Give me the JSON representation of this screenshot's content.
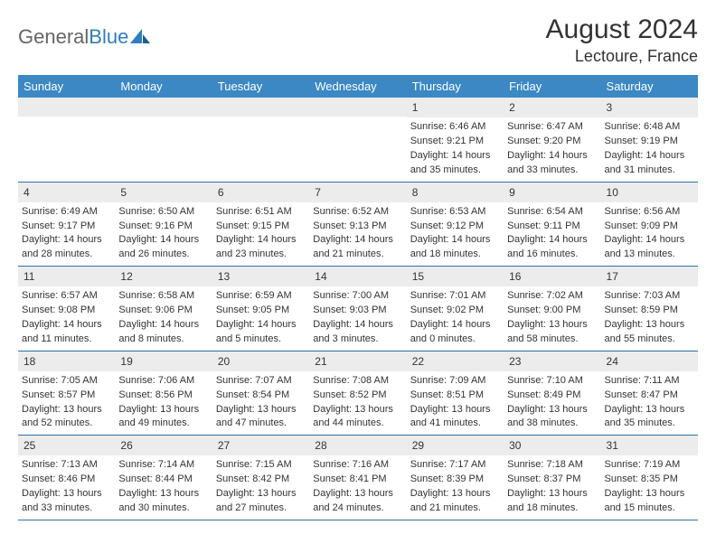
{
  "brand": {
    "part1": "General",
    "part2": "Blue"
  },
  "title": "August 2024",
  "location": "Lectoure, France",
  "colors": {
    "header_bg": "#3b88c4",
    "header_text": "#ffffff",
    "daynum_bg": "#ececec",
    "week_border": "#2f6fa6",
    "body_text": "#333333",
    "brand_gray": "#666666",
    "brand_blue": "#2f7fbf"
  },
  "weekdays": [
    "Sunday",
    "Monday",
    "Tuesday",
    "Wednesday",
    "Thursday",
    "Friday",
    "Saturday"
  ],
  "weeks": [
    [
      {
        "day": "",
        "lines": []
      },
      {
        "day": "",
        "lines": []
      },
      {
        "day": "",
        "lines": []
      },
      {
        "day": "",
        "lines": []
      },
      {
        "day": "1",
        "lines": [
          "Sunrise: 6:46 AM",
          "Sunset: 9:21 PM",
          "Daylight: 14 hours",
          "and 35 minutes."
        ]
      },
      {
        "day": "2",
        "lines": [
          "Sunrise: 6:47 AM",
          "Sunset: 9:20 PM",
          "Daylight: 14 hours",
          "and 33 minutes."
        ]
      },
      {
        "day": "3",
        "lines": [
          "Sunrise: 6:48 AM",
          "Sunset: 9:19 PM",
          "Daylight: 14 hours",
          "and 31 minutes."
        ]
      }
    ],
    [
      {
        "day": "4",
        "lines": [
          "Sunrise: 6:49 AM",
          "Sunset: 9:17 PM",
          "Daylight: 14 hours",
          "and 28 minutes."
        ]
      },
      {
        "day": "5",
        "lines": [
          "Sunrise: 6:50 AM",
          "Sunset: 9:16 PM",
          "Daylight: 14 hours",
          "and 26 minutes."
        ]
      },
      {
        "day": "6",
        "lines": [
          "Sunrise: 6:51 AM",
          "Sunset: 9:15 PM",
          "Daylight: 14 hours",
          "and 23 minutes."
        ]
      },
      {
        "day": "7",
        "lines": [
          "Sunrise: 6:52 AM",
          "Sunset: 9:13 PM",
          "Daylight: 14 hours",
          "and 21 minutes."
        ]
      },
      {
        "day": "8",
        "lines": [
          "Sunrise: 6:53 AM",
          "Sunset: 9:12 PM",
          "Daylight: 14 hours",
          "and 18 minutes."
        ]
      },
      {
        "day": "9",
        "lines": [
          "Sunrise: 6:54 AM",
          "Sunset: 9:11 PM",
          "Daylight: 14 hours",
          "and 16 minutes."
        ]
      },
      {
        "day": "10",
        "lines": [
          "Sunrise: 6:56 AM",
          "Sunset: 9:09 PM",
          "Daylight: 14 hours",
          "and 13 minutes."
        ]
      }
    ],
    [
      {
        "day": "11",
        "lines": [
          "Sunrise: 6:57 AM",
          "Sunset: 9:08 PM",
          "Daylight: 14 hours",
          "and 11 minutes."
        ]
      },
      {
        "day": "12",
        "lines": [
          "Sunrise: 6:58 AM",
          "Sunset: 9:06 PM",
          "Daylight: 14 hours",
          "and 8 minutes."
        ]
      },
      {
        "day": "13",
        "lines": [
          "Sunrise: 6:59 AM",
          "Sunset: 9:05 PM",
          "Daylight: 14 hours",
          "and 5 minutes."
        ]
      },
      {
        "day": "14",
        "lines": [
          "Sunrise: 7:00 AM",
          "Sunset: 9:03 PM",
          "Daylight: 14 hours",
          "and 3 minutes."
        ]
      },
      {
        "day": "15",
        "lines": [
          "Sunrise: 7:01 AM",
          "Sunset: 9:02 PM",
          "Daylight: 14 hours",
          "and 0 minutes."
        ]
      },
      {
        "day": "16",
        "lines": [
          "Sunrise: 7:02 AM",
          "Sunset: 9:00 PM",
          "Daylight: 13 hours",
          "and 58 minutes."
        ]
      },
      {
        "day": "17",
        "lines": [
          "Sunrise: 7:03 AM",
          "Sunset: 8:59 PM",
          "Daylight: 13 hours",
          "and 55 minutes."
        ]
      }
    ],
    [
      {
        "day": "18",
        "lines": [
          "Sunrise: 7:05 AM",
          "Sunset: 8:57 PM",
          "Daylight: 13 hours",
          "and 52 minutes."
        ]
      },
      {
        "day": "19",
        "lines": [
          "Sunrise: 7:06 AM",
          "Sunset: 8:56 PM",
          "Daylight: 13 hours",
          "and 49 minutes."
        ]
      },
      {
        "day": "20",
        "lines": [
          "Sunrise: 7:07 AM",
          "Sunset: 8:54 PM",
          "Daylight: 13 hours",
          "and 47 minutes."
        ]
      },
      {
        "day": "21",
        "lines": [
          "Sunrise: 7:08 AM",
          "Sunset: 8:52 PM",
          "Daylight: 13 hours",
          "and 44 minutes."
        ]
      },
      {
        "day": "22",
        "lines": [
          "Sunrise: 7:09 AM",
          "Sunset: 8:51 PM",
          "Daylight: 13 hours",
          "and 41 minutes."
        ]
      },
      {
        "day": "23",
        "lines": [
          "Sunrise: 7:10 AM",
          "Sunset: 8:49 PM",
          "Daylight: 13 hours",
          "and 38 minutes."
        ]
      },
      {
        "day": "24",
        "lines": [
          "Sunrise: 7:11 AM",
          "Sunset: 8:47 PM",
          "Daylight: 13 hours",
          "and 35 minutes."
        ]
      }
    ],
    [
      {
        "day": "25",
        "lines": [
          "Sunrise: 7:13 AM",
          "Sunset: 8:46 PM",
          "Daylight: 13 hours",
          "and 33 minutes."
        ]
      },
      {
        "day": "26",
        "lines": [
          "Sunrise: 7:14 AM",
          "Sunset: 8:44 PM",
          "Daylight: 13 hours",
          "and 30 minutes."
        ]
      },
      {
        "day": "27",
        "lines": [
          "Sunrise: 7:15 AM",
          "Sunset: 8:42 PM",
          "Daylight: 13 hours",
          "and 27 minutes."
        ]
      },
      {
        "day": "28",
        "lines": [
          "Sunrise: 7:16 AM",
          "Sunset: 8:41 PM",
          "Daylight: 13 hours",
          "and 24 minutes."
        ]
      },
      {
        "day": "29",
        "lines": [
          "Sunrise: 7:17 AM",
          "Sunset: 8:39 PM",
          "Daylight: 13 hours",
          "and 21 minutes."
        ]
      },
      {
        "day": "30",
        "lines": [
          "Sunrise: 7:18 AM",
          "Sunset: 8:37 PM",
          "Daylight: 13 hours",
          "and 18 minutes."
        ]
      },
      {
        "day": "31",
        "lines": [
          "Sunrise: 7:19 AM",
          "Sunset: 8:35 PM",
          "Daylight: 13 hours",
          "and 15 minutes."
        ]
      }
    ]
  ]
}
